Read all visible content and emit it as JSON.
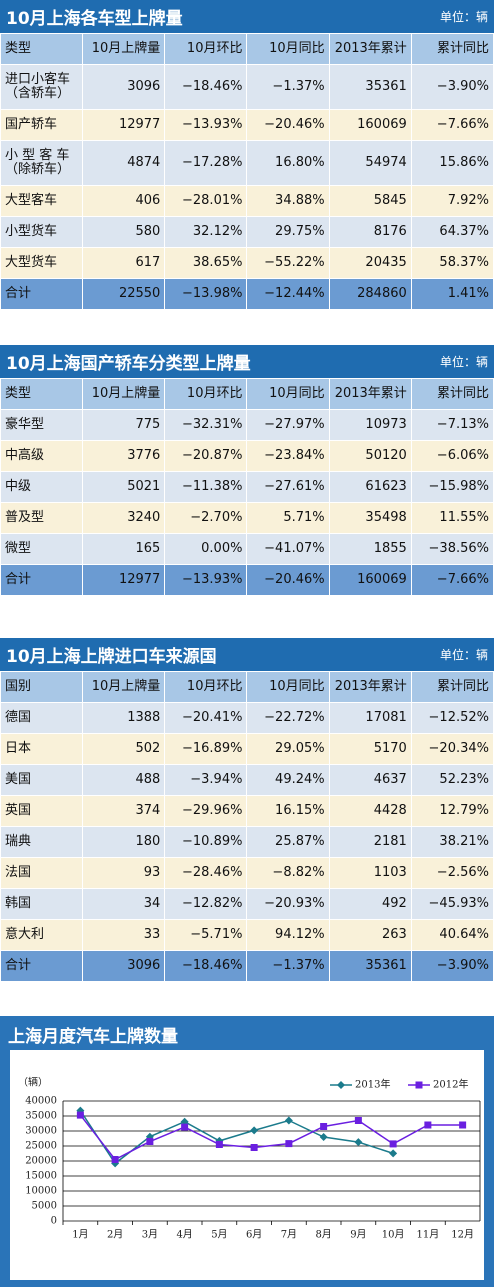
{
  "tables": [
    {
      "title": "10月上海各车型上牌量",
      "unit": "单位：辆",
      "columns": [
        "类型",
        "10月上牌量",
        "10月环比",
        "10月同比",
        "2013年累计",
        "累计同比"
      ],
      "rows": [
        [
          "进口小客车\n（含轿车）",
          "3096",
          "−18.46%",
          "−1.37%",
          "35361",
          "−3.90%"
        ],
        [
          "国产轿车",
          "12977",
          "−13.93%",
          "−20.46%",
          "160069",
          "−7.66%"
        ],
        [
          "小 型 客 车\n（除轿车）",
          "4874",
          "−17.28%",
          "16.80%",
          "54974",
          "15.86%"
        ],
        [
          "大型客车",
          "406",
          "−28.01%",
          "34.88%",
          "5845",
          "7.92%"
        ],
        [
          "小型货车",
          "580",
          "32.12%",
          "29.75%",
          "8176",
          "64.37%"
        ],
        [
          "大型货车",
          "617",
          "38.65%",
          "−55.22%",
          "20435",
          "58.37%"
        ],
        [
          "合计",
          "22550",
          "−13.98%",
          "−12.44%",
          "284860",
          "1.41%"
        ]
      ]
    },
    {
      "title": "10月上海国产轿车分类型上牌量",
      "unit": "单位：辆",
      "columns": [
        "类型",
        "10月上牌量",
        "10月环比",
        "10月同比",
        "2013年累计",
        "累计同比"
      ],
      "rows": [
        [
          "豪华型",
          "775",
          "−32.31%",
          "−27.97%",
          "10973",
          "−7.13%"
        ],
        [
          "中高级",
          "3776",
          "−20.87%",
          "−23.84%",
          "50120",
          "−6.06%"
        ],
        [
          "中级",
          "5021",
          "−11.38%",
          "−27.61%",
          "61623",
          "−15.98%"
        ],
        [
          "普及型",
          "3240",
          "−2.70%",
          "5.71%",
          "35498",
          "11.55%"
        ],
        [
          "微型",
          "165",
          "0.00%",
          "−41.07%",
          "1855",
          "−38.56%"
        ],
        [
          "合计",
          "12977",
          "−13.93%",
          "−20.46%",
          "160069",
          "−7.66%"
        ]
      ]
    },
    {
      "title": "10月上海上牌进口车来源国",
      "unit": "单位：辆",
      "columns": [
        "国别",
        "10月上牌量",
        "10月环比",
        "10月同比",
        "2013年累计",
        "累计同比"
      ],
      "rows": [
        [
          "德国",
          "1388",
          "−20.41%",
          "−22.72%",
          "17081",
          "−12.52%"
        ],
        [
          "日本",
          "502",
          "−16.89%",
          "29.05%",
          "5170",
          "−20.34%"
        ],
        [
          "美国",
          "488",
          "−3.94%",
          "49.24%",
          "4637",
          "52.23%"
        ],
        [
          "英国",
          "374",
          "−29.96%",
          "16.15%",
          "4428",
          "12.79%"
        ],
        [
          "瑞典",
          "180",
          "−10.89%",
          "25.87%",
          "2181",
          "38.21%"
        ],
        [
          "法国",
          "93",
          "−28.46%",
          "−8.82%",
          "1103",
          "−2.56%"
        ],
        [
          "韩国",
          "34",
          "−12.82%",
          "−20.93%",
          "492",
          "−45.93%"
        ],
        [
          "意大利",
          "33",
          "−5.71%",
          "94.12%",
          "263",
          "40.64%"
        ],
        [
          "合计",
          "3096",
          "−18.46%",
          "−1.37%",
          "35361",
          "−3.90%"
        ]
      ]
    }
  ],
  "chart_data": {
    "type": "line",
    "title": "上海月度汽车上牌数量",
    "y_label": "（辆）",
    "categories": [
      "1月",
      "2月",
      "3月",
      "4月",
      "5月",
      "6月",
      "7月",
      "8月",
      "9月",
      "10月",
      "11月",
      "12月"
    ],
    "series": [
      {
        "name": "2013年",
        "color": "#1b7b8c",
        "marker": "diamond",
        "values": [
          36800,
          19200,
          28100,
          33100,
          26700,
          30200,
          33500,
          28000,
          26300,
          22550,
          null,
          null
        ]
      },
      {
        "name": "2012年",
        "color": "#6a1fe0",
        "marker": "square",
        "values": [
          35300,
          20500,
          26500,
          31300,
          25500,
          24500,
          25800,
          31500,
          33500,
          25700,
          32000,
          32000
        ]
      }
    ],
    "ylim": [
      0,
      40000
    ],
    "yticks": [
      0,
      5000,
      10000,
      15000,
      20000,
      25000,
      30000,
      35000,
      40000
    ],
    "grid": true,
    "legend": "top-right"
  }
}
